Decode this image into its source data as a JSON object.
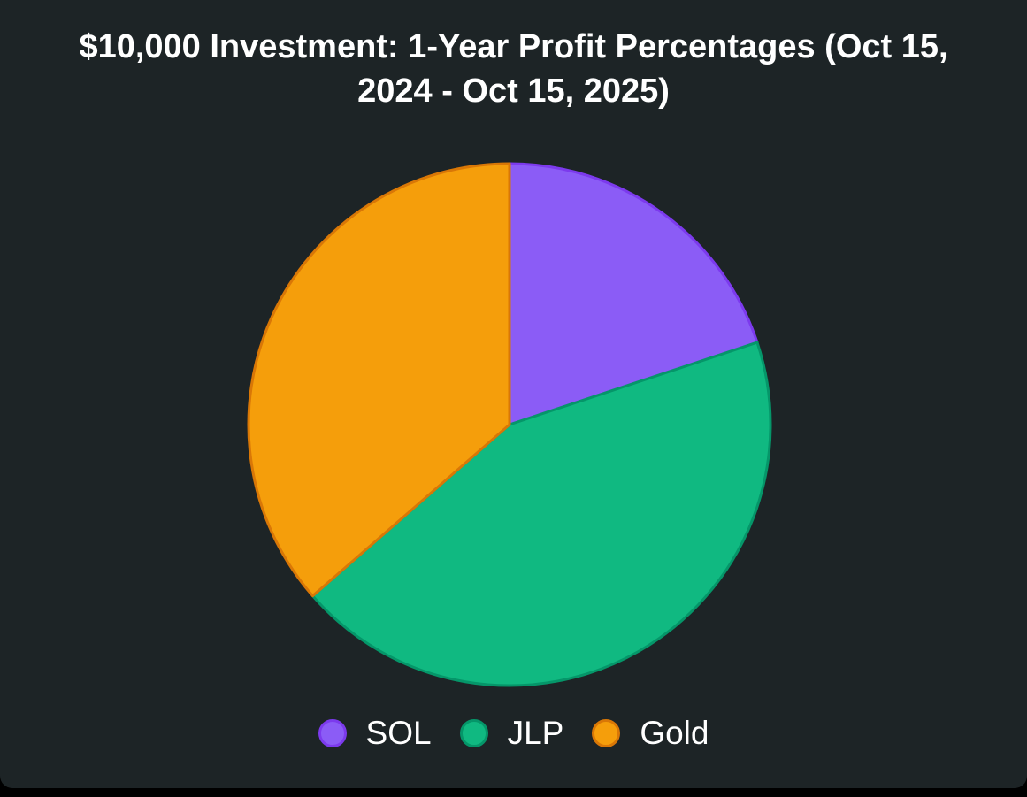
{
  "chart_data": {
    "type": "pie",
    "title_lines": [
      "$10,000 Investment: 1-Year Profit Percentages (Oct 15,",
      "2024 - Oct 15, 2025)"
    ],
    "series": [
      {
        "values": [
          19.9,
          43.7,
          36.4
        ],
        "colors": [
          "#8b5cf6",
          "#10b981",
          "#f59e0b"
        ],
        "border_colors": [
          "#7c3aed",
          "#059669",
          "#d97706"
        ]
      }
    ],
    "categories": [
      "SOL",
      "JLP",
      "Gold"
    ],
    "legend_position": "bottom",
    "start_angle": "top",
    "direction": "clockwise"
  }
}
